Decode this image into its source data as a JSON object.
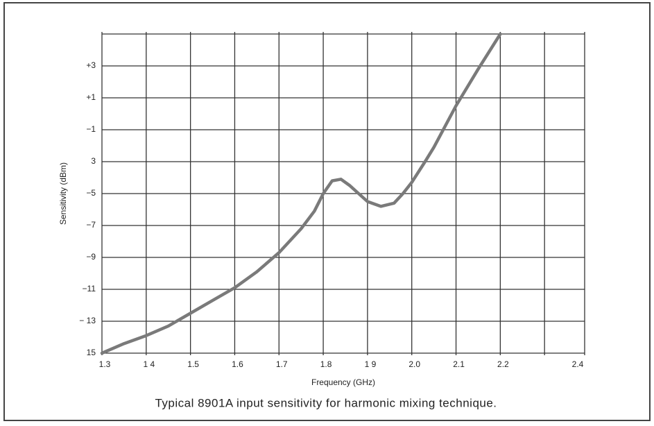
{
  "chart_data": {
    "type": "line",
    "xlabel": "Frequency (GHz)",
    "ylabel": "Sensitivity (dBm)",
    "caption": "Typical 8901A input sensitivity for harmonic mixing technique.",
    "xlim": [
      1.3,
      2.4
    ],
    "ylim": [
      -15,
      5
    ],
    "xticks": [
      1.3,
      {
        "value": 1.4,
        "label": "1 4"
      },
      1.5,
      1.6,
      1.7,
      1.8,
      {
        "value": 1.9,
        "label": "1 9"
      },
      {
        "value": 2.0,
        "label": "2.0"
      },
      2.1,
      2.2,
      {
        "value": 2.3,
        "label": null
      },
      2.4
    ],
    "yticks": [
      {
        "value": -15,
        "label": "15"
      },
      {
        "value": -13,
        "label": "− 13"
      },
      {
        "value": -11,
        "label": "−11"
      },
      {
        "value": -9,
        "label": "−9"
      },
      {
        "value": -7,
        "label": "−7"
      },
      {
        "value": -5,
        "label": "−5"
      },
      {
        "value": -3,
        "label": "3"
      },
      {
        "value": -1,
        "label": "−1"
      },
      {
        "value": 1,
        "label": "+1"
      },
      {
        "value": 3,
        "label": "+3"
      },
      {
        "value": 5,
        "label": null
      }
    ],
    "grid": true,
    "series": [
      {
        "name": "Sensitivity",
        "color": "#7a7a7a",
        "x": [
          1.3,
          1.35,
          1.4,
          1.45,
          1.5,
          1.55,
          1.6,
          1.65,
          1.7,
          1.75,
          1.78,
          1.8,
          1.82,
          1.84,
          1.86,
          1.88,
          1.9,
          1.93,
          1.96,
          1.98,
          2.0,
          2.03,
          2.05,
          2.1,
          2.15,
          2.2
        ],
        "values": [
          -15.0,
          -14.4,
          -13.9,
          -13.3,
          -12.5,
          -11.7,
          -10.9,
          -9.9,
          -8.7,
          -7.2,
          -6.1,
          -5.0,
          -4.2,
          -4.1,
          -4.5,
          -5.0,
          -5.5,
          -5.8,
          -5.6,
          -5.0,
          -4.3,
          -3.0,
          -2.1,
          0.5,
          2.8,
          5.0
        ]
      }
    ]
  }
}
